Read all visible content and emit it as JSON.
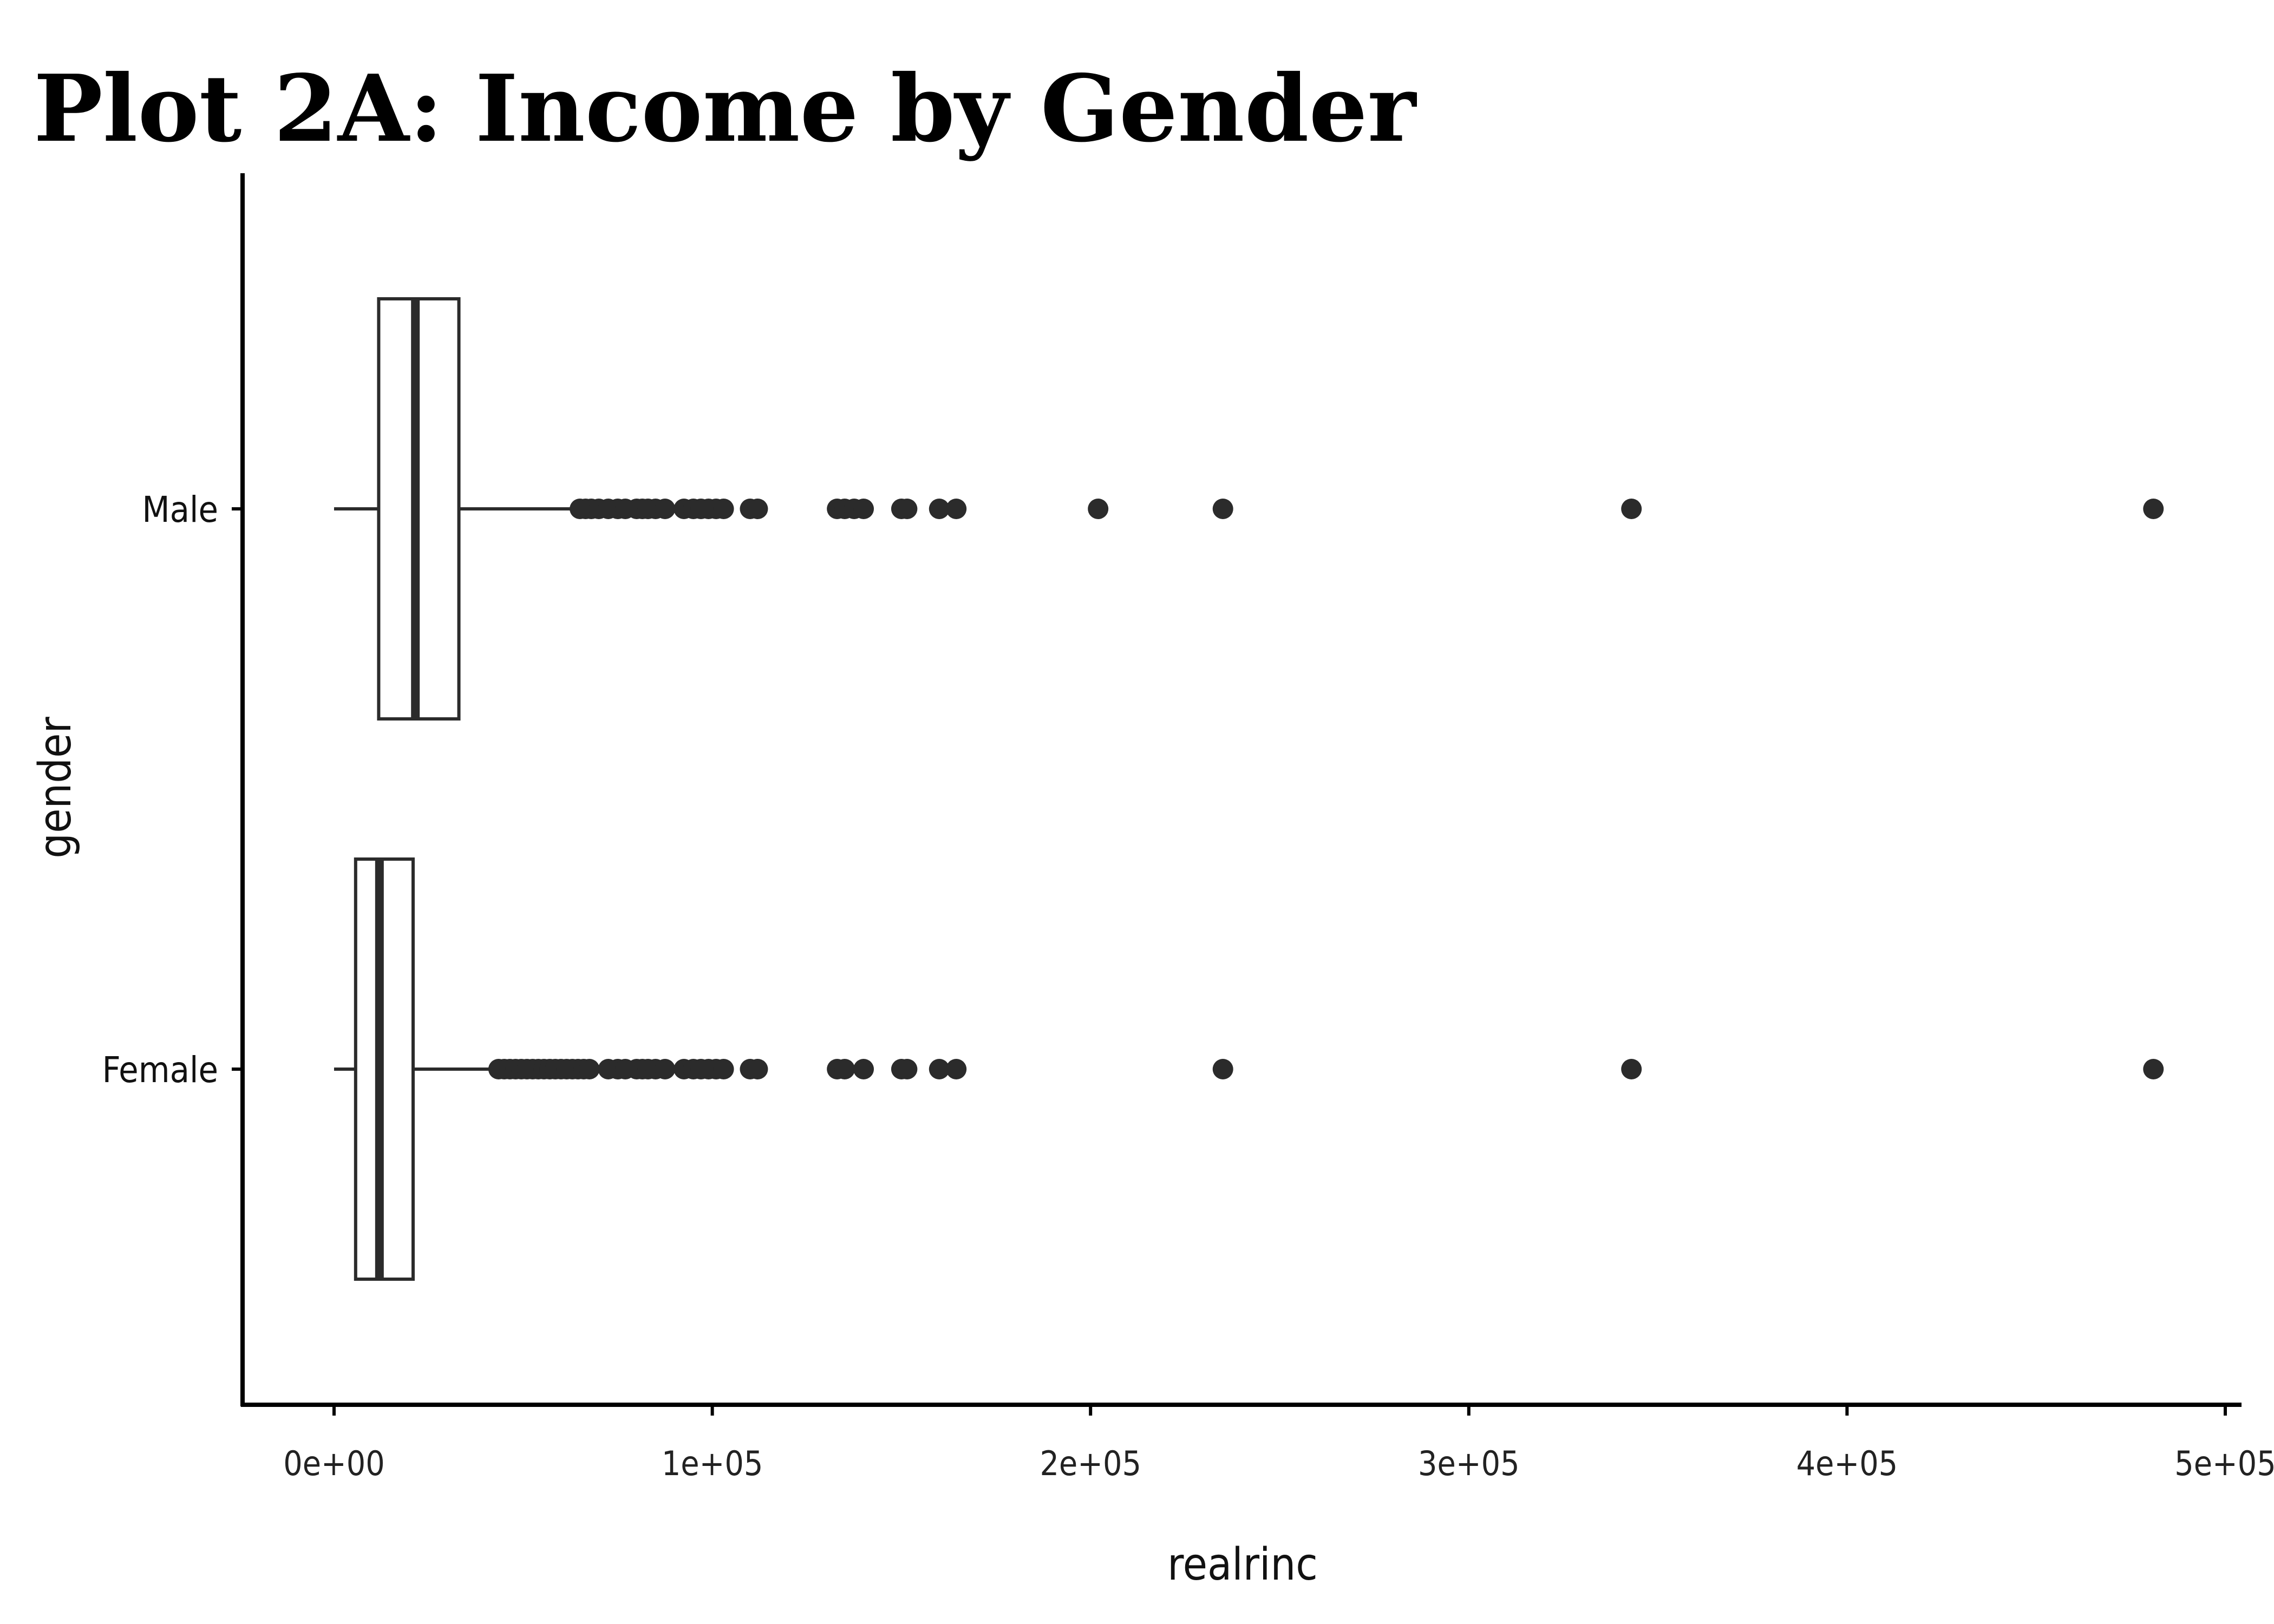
{
  "chart_data": {
    "type": "boxplot",
    "orientation": "horizontal",
    "title": "Plot 2A: Income by Gender",
    "xlabel": "realrinc",
    "ylabel": "gender",
    "xlim": [
      -24000,
      502000
    ],
    "x_ticks": [
      0,
      100000,
      200000,
      300000,
      400000,
      500000
    ],
    "x_tick_labels": [
      "0e+00",
      "1e+05",
      "2e+05",
      "3e+05",
      "4e+05",
      "5e+05"
    ],
    "categories": [
      "Male",
      "Female"
    ],
    "grid": false,
    "legend": "none",
    "colors": {
      "box_fill": "#ffffff",
      "box_stroke": "#2b2b2b",
      "outlier": "#2b2b2b",
      "axis": "#000000"
    },
    "series": [
      {
        "category": "Male",
        "whisker_low": 0,
        "q1": 11800,
        "median": 21500,
        "q3": 33000,
        "whisker_high": 62500,
        "outliers": [
          65000,
          66500,
          68000,
          70000,
          72500,
          75000,
          77000,
          80000,
          81500,
          83000,
          85000,
          87500,
          92500,
          95000,
          97000,
          99000,
          101000,
          103000,
          110000,
          112000,
          133000,
          135000,
          137500,
          140000,
          150000,
          151500,
          160000,
          164500,
          202000,
          235000,
          343000,
          481000
        ]
      },
      {
        "category": "Female",
        "whisker_low": 0,
        "q1": 5700,
        "median": 12000,
        "q3": 20900,
        "whisker_high": 42000,
        "outliers": [
          43500,
          45000,
          46500,
          48000,
          49500,
          51000,
          52500,
          54000,
          55500,
          57000,
          58500,
          60000,
          61500,
          63000,
          64500,
          66000,
          67500,
          72500,
          75000,
          77000,
          80000,
          81500,
          83000,
          85000,
          87500,
          92500,
          95000,
          97000,
          99000,
          101000,
          103000,
          110000,
          112000,
          133000,
          135000,
          140000,
          150000,
          151500,
          160000,
          164500,
          235000,
          343000,
          481000
        ]
      }
    ]
  }
}
